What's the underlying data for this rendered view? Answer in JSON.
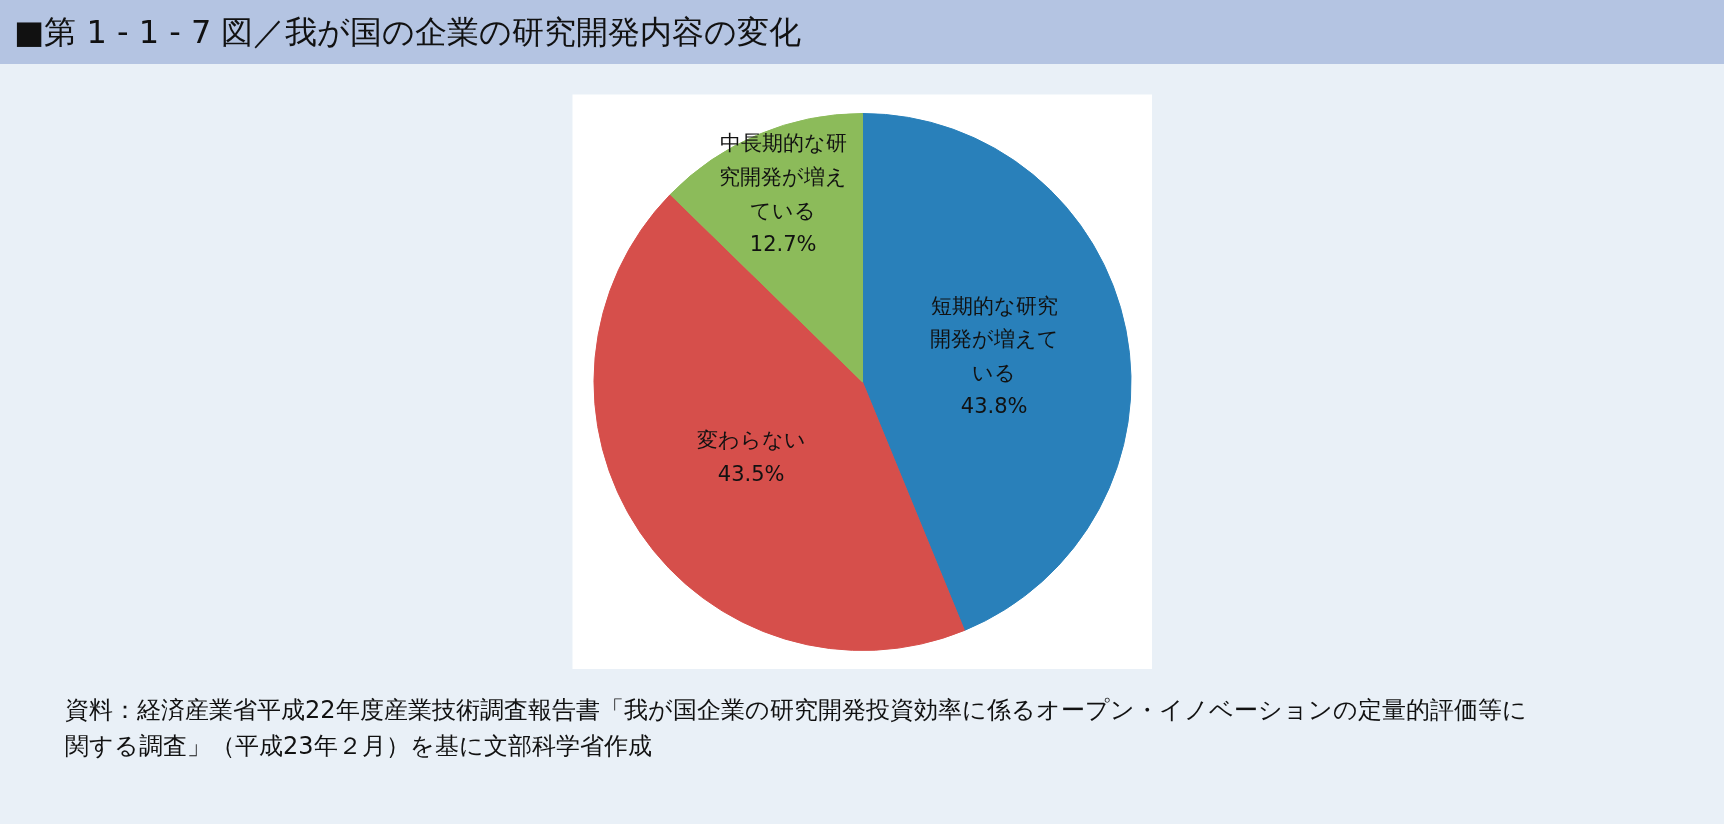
{
  "chart_data": {
    "type": "pie",
    "title": "■第 1 - 1 - 7 図／我が国の企業の研究開発内容の変化",
    "categories": [
      "短期的な研究開発が増えている",
      "変わらない",
      "中長期的な研究開発が増えている"
    ],
    "values": [
      43.8,
      43.5,
      12.7
    ],
    "colors": [
      "#2980ba",
      "#d64f4b",
      "#8cbb5a"
    ],
    "value_labels": [
      "43.8%",
      "43.5%",
      "12.7%"
    ],
    "annotations": [
      "資料：経済産業省平成22年度産業技術調査報告書「我が国企業の研究開発投資効率に係るオープン・イノベーションの定量的評価等に関する調査」（平成23年２月）を基に文部科学省作成"
    ]
  }
}
